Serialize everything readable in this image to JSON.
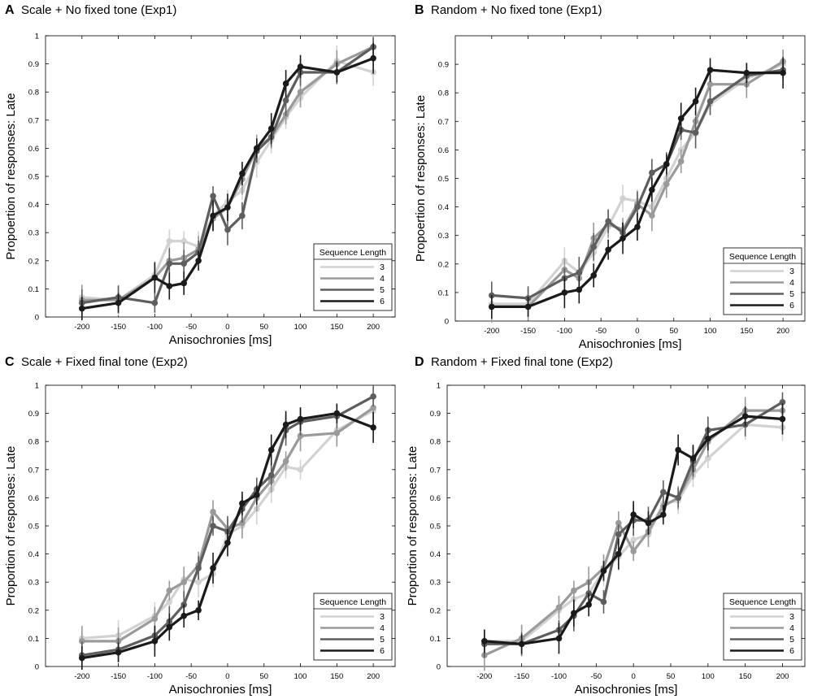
{
  "colors": [
    "#d2d2d2",
    "#9a9a9a",
    "#5e5e5e",
    "#1a1a1a"
  ],
  "chart_data": [
    {
      "type": "line",
      "letter": "A",
      "title": "Scale + No fixed tone (Exp1)",
      "xlabel": "Anisochronies [ms]",
      "ylabel": "Propoertion of responses: Late",
      "xlim": [
        -250,
        230
      ],
      "ylim": [
        0,
        1
      ],
      "xticks": [
        -200,
        -150,
        -100,
        -50,
        0,
        50,
        100,
        150,
        200
      ],
      "yticks": [
        0,
        0.1,
        0.2,
        0.3,
        0.4,
        0.5,
        0.6,
        0.7,
        0.8,
        0.9,
        1
      ],
      "legend": {
        "title": "Sequence Length",
        "placement": "bottom-right"
      },
      "x": [
        -200,
        -150,
        -100,
        -80,
        -60,
        -40,
        -20,
        0,
        20,
        40,
        60,
        80,
        100,
        150,
        200
      ],
      "series": [
        {
          "name": "3",
          "values": [
            0.07,
            0.06,
            0.15,
            0.27,
            0.27,
            0.25,
            0.36,
            0.41,
            0.45,
            0.55,
            0.63,
            0.71,
            0.78,
            0.91,
            0.87
          ]
        },
        {
          "name": "4",
          "values": [
            0.06,
            0.06,
            0.14,
            0.2,
            0.21,
            0.24,
            0.35,
            0.39,
            0.49,
            0.6,
            0.64,
            0.72,
            0.8,
            0.9,
            0.96
          ]
        },
        {
          "name": "5",
          "values": [
            0.05,
            0.07,
            0.05,
            0.19,
            0.19,
            0.23,
            0.43,
            0.31,
            0.36,
            0.59,
            0.64,
            0.77,
            0.87,
            0.87,
            0.96
          ]
        },
        {
          "name": "6",
          "values": [
            0.03,
            0.05,
            0.14,
            0.11,
            0.12,
            0.2,
            0.36,
            0.39,
            0.51,
            0.6,
            0.67,
            0.83,
            0.89,
            0.87,
            0.92
          ]
        }
      ]
    },
    {
      "type": "line",
      "letter": "B",
      "title": "Random + No fixed tone (Exp1)",
      "xlabel": "Anisochronies [ms]",
      "ylabel": "Propoertion of responses: Late",
      "xlim": [
        -250,
        230
      ],
      "ylim": [
        0,
        1
      ],
      "xticks": [
        -200,
        -150,
        -100,
        -50,
        0,
        50,
        100,
        150,
        200
      ],
      "yticks": [
        0,
        0.1,
        0.2,
        0.3,
        0.4,
        0.5,
        0.6,
        0.7,
        0.8,
        0.9
      ],
      "legend": {
        "title": "Sequence Length",
        "placement": "bottom-right"
      },
      "x": [
        -200,
        -150,
        -100,
        -80,
        -60,
        -40,
        -20,
        0,
        20,
        40,
        60,
        80,
        100,
        150,
        200
      ],
      "series": [
        {
          "name": "3",
          "values": [
            0.06,
            0.06,
            0.21,
            0.17,
            0.24,
            0.33,
            0.43,
            0.42,
            0.4,
            0.5,
            0.6,
            0.66,
            0.76,
            0.85,
            0.9
          ]
        },
        {
          "name": "4",
          "values": [
            0.05,
            0.05,
            0.18,
            0.15,
            0.29,
            0.34,
            0.32,
            0.41,
            0.37,
            0.48,
            0.56,
            0.7,
            0.83,
            0.83,
            0.91
          ]
        },
        {
          "name": "5",
          "values": [
            0.09,
            0.08,
            0.15,
            0.17,
            0.26,
            0.35,
            0.31,
            0.4,
            0.52,
            0.55,
            0.67,
            0.66,
            0.77,
            0.86,
            0.88
          ]
        },
        {
          "name": "6",
          "values": [
            0.05,
            0.05,
            0.1,
            0.11,
            0.16,
            0.25,
            0.29,
            0.33,
            0.46,
            0.55,
            0.71,
            0.77,
            0.88,
            0.87,
            0.87
          ]
        }
      ]
    },
    {
      "type": "line",
      "letter": "C",
      "title": "Scale + Fixed final tone (Exp2)",
      "xlabel": "Anisochronies [ms]",
      "ylabel": "Proportion of responses: Late",
      "xlim": [
        -250,
        230
      ],
      "ylim": [
        0,
        1
      ],
      "xticks": [
        -200,
        -150,
        -100,
        -50,
        0,
        50,
        100,
        150,
        200
      ],
      "yticks": [
        0,
        0.1,
        0.2,
        0.3,
        0.4,
        0.5,
        0.6,
        0.7,
        0.8,
        0.9,
        1
      ],
      "legend": {
        "title": "Sequence Length",
        "placement": "bottom-right"
      },
      "x": [
        -200,
        -150,
        -100,
        -80,
        -60,
        -40,
        -20,
        0,
        20,
        40,
        60,
        80,
        100,
        150,
        200
      ],
      "series": [
        {
          "name": "3",
          "values": [
            0.1,
            0.11,
            0.18,
            0.23,
            0.31,
            0.3,
            0.33,
            0.47,
            0.5,
            0.56,
            0.63,
            0.71,
            0.7,
            0.84,
            0.91
          ]
        },
        {
          "name": "4",
          "values": [
            0.09,
            0.09,
            0.17,
            0.27,
            0.3,
            0.36,
            0.55,
            0.49,
            0.51,
            0.6,
            0.66,
            0.73,
            0.82,
            0.83,
            0.92
          ]
        },
        {
          "name": "5",
          "values": [
            0.04,
            0.06,
            0.11,
            0.16,
            0.22,
            0.35,
            0.5,
            0.48,
            0.56,
            0.63,
            0.68,
            0.84,
            0.87,
            0.89,
            0.96
          ]
        },
        {
          "name": "6",
          "values": [
            0.03,
            0.05,
            0.09,
            0.14,
            0.18,
            0.2,
            0.35,
            0.44,
            0.58,
            0.61,
            0.77,
            0.86,
            0.88,
            0.9,
            0.85
          ]
        }
      ]
    },
    {
      "type": "line",
      "letter": "D",
      "title": "Random + Fixed final tone (Exp2)",
      "xlabel": "Anisochronies [ms]",
      "ylabel": "Proportion of responses: Late",
      "xlim": [
        -250,
        230
      ],
      "ylim": [
        0,
        1
      ],
      "xticks": [
        -200,
        -150,
        -100,
        -50,
        0,
        50,
        100,
        150,
        200
      ],
      "yticks": [
        0,
        0.1,
        0.2,
        0.3,
        0.4,
        0.5,
        0.6,
        0.7,
        0.8,
        0.9,
        1
      ],
      "legend": {
        "title": "Sequence Length",
        "placement": "bottom-right"
      },
      "x": [
        -200,
        -150,
        -100,
        -80,
        -60,
        -40,
        -20,
        0,
        20,
        40,
        60,
        80,
        100,
        150,
        200
      ],
      "series": [
        {
          "name": "3",
          "values": [
            0.09,
            0.09,
            0.2,
            0.24,
            0.26,
            0.34,
            0.39,
            0.45,
            0.47,
            0.58,
            0.59,
            0.68,
            0.74,
            0.86,
            0.85
          ]
        },
        {
          "name": "4",
          "values": [
            0.04,
            0.1,
            0.21,
            0.27,
            0.3,
            0.35,
            0.51,
            0.41,
            0.48,
            0.57,
            0.6,
            0.7,
            0.8,
            0.91,
            0.91
          ]
        },
        {
          "name": "5",
          "values": [
            0.08,
            0.08,
            0.13,
            0.18,
            0.26,
            0.23,
            0.47,
            0.52,
            0.52,
            0.62,
            0.6,
            0.73,
            0.84,
            0.86,
            0.94
          ]
        },
        {
          "name": "6",
          "values": [
            0.09,
            0.08,
            0.1,
            0.19,
            0.22,
            0.34,
            0.4,
            0.54,
            0.51,
            0.54,
            0.77,
            0.74,
            0.81,
            0.89,
            0.88
          ]
        }
      ]
    }
  ]
}
